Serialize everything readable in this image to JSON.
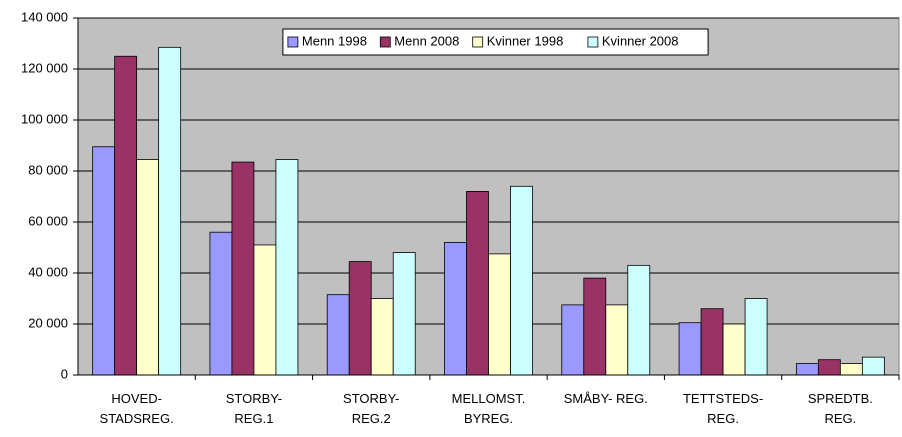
{
  "chart_data": {
    "type": "bar",
    "categories": [
      "HOVED-\nSTADSREG.",
      "STORBY-\nREG.1",
      "STORBY-\nREG.2",
      "MELLOMST.\nBYREG.",
      "SMÅBY-  REG.",
      "TETTSTEDS-\nREG.",
      "SPREDTB.\nREG."
    ],
    "series": [
      {
        "name": "Menn 1998",
        "color": "#9999ff",
        "values": [
          89500,
          56000,
          31500,
          52000,
          27500,
          20500,
          4500
        ]
      },
      {
        "name": "Menn 2008",
        "color": "#993366",
        "values": [
          125000,
          83500,
          44500,
          72000,
          38000,
          26000,
          6000
        ]
      },
      {
        "name": "Kvinner 1998",
        "color": "#ffffcc",
        "values": [
          84500,
          51000,
          30000,
          47500,
          27500,
          20000,
          4500
        ]
      },
      {
        "name": "Kvinner 2008",
        "color": "#ccffff",
        "values": [
          128500,
          84500,
          48000,
          74000,
          43000,
          30000,
          7000
        ]
      }
    ],
    "ylim": [
      0,
      140000
    ],
    "yticks": [
      0,
      {
        "value": 20000,
        "label": "20 000"
      },
      {
        "value": 40000,
        "label": "40 000"
      },
      {
        "value": 60000,
        "label": "60 000"
      },
      {
        "value": 80000,
        "label": "80 000"
      },
      {
        "value": 100000,
        "label": "100 000"
      },
      {
        "value": 120000,
        "label": "120 000"
      },
      {
        "value": 140000,
        "label": "140 000"
      }
    ],
    "grid": true,
    "legend": "top",
    "plot_background": "#c0c0c0"
  }
}
